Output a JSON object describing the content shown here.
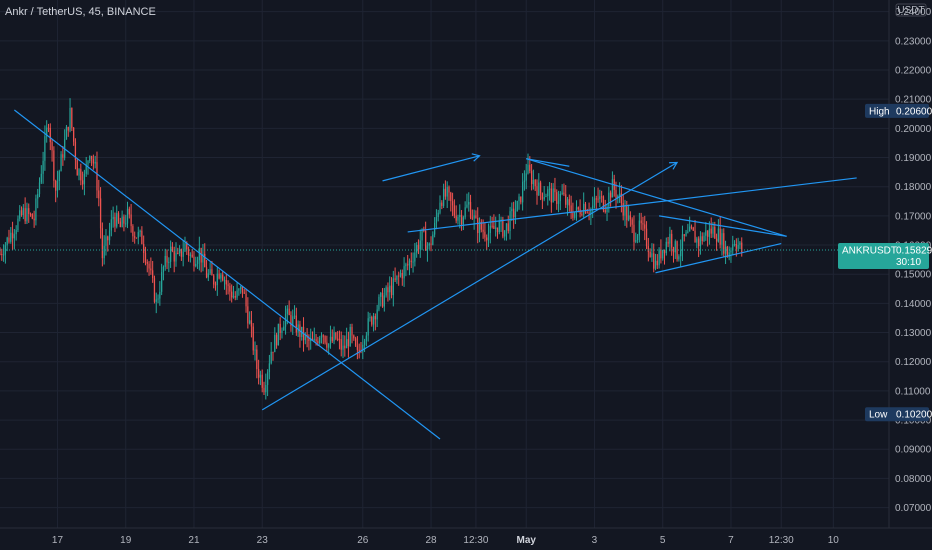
{
  "header": {
    "title": "Ankr / TetherUS, 45, BINANCE",
    "currency": "USDT"
  },
  "colors": {
    "background": "#131722",
    "grid": "#1f2433",
    "up": "#26a69a",
    "down": "#ef5350",
    "trendline": "#2196f3",
    "price_badge": "#26a69a",
    "hl_badge": "#1e3a5f"
  },
  "chart_data": {
    "type": "candlestick",
    "y_axis": {
      "ticks": [
        "0.07000",
        "0.08000",
        "0.09000",
        "0.10000",
        "0.11000",
        "0.12000",
        "0.13000",
        "0.14000",
        "0.15000",
        "0.16000",
        "0.17000",
        "0.18000",
        "0.19000",
        "0.20000",
        "0.21000",
        "0.22000",
        "0.23000",
        "0.24000"
      ],
      "tick_values": [
        0.07,
        0.08,
        0.09,
        0.1,
        0.11,
        0.12,
        0.13,
        0.14,
        0.15,
        0.16,
        0.17,
        0.18,
        0.19,
        0.2,
        0.21,
        0.22,
        0.23,
        0.24
      ],
      "range": [
        0.063,
        0.244
      ]
    },
    "x_axis": {
      "ticks": [
        {
          "label": "17",
          "bold": false,
          "t": 15
        },
        {
          "label": "19",
          "bold": false,
          "t": 53
        },
        {
          "label": "21",
          "bold": false,
          "t": 91
        },
        {
          "label": "23",
          "bold": false,
          "t": 129
        },
        {
          "label": "26",
          "bold": false,
          "t": 185
        },
        {
          "label": "28",
          "bold": false,
          "t": 223
        },
        {
          "label": "12:30",
          "bold": false,
          "t": 248
        },
        {
          "label": "May",
          "bold": true,
          "t": 276
        },
        {
          "label": "3",
          "bold": false,
          "t": 314
        },
        {
          "label": "5",
          "bold": false,
          "t": 352
        },
        {
          "label": "7",
          "bold": false,
          "t": 390
        },
        {
          "label": "12:30",
          "bold": false,
          "t": 418
        },
        {
          "label": "10",
          "bold": false,
          "t": 447
        }
      ],
      "t_range": [
        -17,
        478
      ]
    },
    "high": {
      "label": "High",
      "value": "0.20600",
      "y": 0.206
    },
    "low": {
      "label": "Low",
      "value": "0.10200",
      "y": 0.102
    },
    "last": {
      "symbol": "ANKRUSDT",
      "value": "0.15829",
      "countdown": "30:10",
      "y": 0.1583
    },
    "price_path": [
      [
        -17,
        0.157
      ],
      [
        -10,
        0.165
      ],
      [
        -4,
        0.171
      ],
      [
        2,
        0.169
      ],
      [
        6,
        0.186
      ],
      [
        10,
        0.203
      ],
      [
        14,
        0.179
      ],
      [
        18,
        0.192
      ],
      [
        22,
        0.205
      ],
      [
        26,
        0.186
      ],
      [
        30,
        0.183
      ],
      [
        33,
        0.193
      ],
      [
        36,
        0.186
      ],
      [
        38,
        0.176
      ],
      [
        40,
        0.156
      ],
      [
        43,
        0.162
      ],
      [
        46,
        0.17
      ],
      [
        50,
        0.166
      ],
      [
        54,
        0.17
      ],
      [
        58,
        0.164
      ],
      [
        62,
        0.162
      ],
      [
        66,
        0.152
      ],
      [
        70,
        0.14
      ],
      [
        74,
        0.152
      ],
      [
        78,
        0.158
      ],
      [
        82,
        0.155
      ],
      [
        86,
        0.16
      ],
      [
        90,
        0.155
      ],
      [
        94,
        0.158
      ],
      [
        98,
        0.15
      ],
      [
        102,
        0.148
      ],
      [
        106,
        0.152
      ],
      [
        110,
        0.145
      ],
      [
        114,
        0.142
      ],
      [
        118,
        0.145
      ],
      [
        122,
        0.133
      ],
      [
        126,
        0.118
      ],
      [
        130,
        0.112
      ],
      [
        134,
        0.124
      ],
      [
        138,
        0.13
      ],
      [
        142,
        0.136
      ],
      [
        146,
        0.134
      ],
      [
        150,
        0.13
      ],
      [
        154,
        0.127
      ],
      [
        158,
        0.126
      ],
      [
        162,
        0.131
      ],
      [
        166,
        0.126
      ],
      [
        170,
        0.128
      ],
      [
        174,
        0.124
      ],
      [
        178,
        0.129
      ],
      [
        182,
        0.122
      ],
      [
        186,
        0.13
      ],
      [
        190,
        0.135
      ],
      [
        194,
        0.14
      ],
      [
        198,
        0.143
      ],
      [
        202,
        0.146
      ],
      [
        206,
        0.15
      ],
      [
        210,
        0.153
      ],
      [
        214,
        0.158
      ],
      [
        218,
        0.163
      ],
      [
        222,
        0.159
      ],
      [
        225,
        0.166
      ],
      [
        228,
        0.176
      ],
      [
        232,
        0.177
      ],
      [
        236,
        0.171
      ],
      [
        240,
        0.17
      ],
      [
        244,
        0.174
      ],
      [
        248,
        0.167
      ],
      [
        252,
        0.165
      ],
      [
        256,
        0.164
      ],
      [
        260,
        0.167
      ],
      [
        264,
        0.165
      ],
      [
        268,
        0.17
      ],
      [
        272,
        0.174
      ],
      [
        276,
        0.186
      ],
      [
        280,
        0.182
      ],
      [
        284,
        0.178
      ],
      [
        288,
        0.178
      ],
      [
        292,
        0.176
      ],
      [
        296,
        0.177
      ],
      [
        300,
        0.172
      ],
      [
        304,
        0.171
      ],
      [
        308,
        0.174
      ],
      [
        312,
        0.172
      ],
      [
        316,
        0.176
      ],
      [
        320,
        0.174
      ],
      [
        324,
        0.18
      ],
      [
        328,
        0.176
      ],
      [
        332,
        0.17
      ],
      [
        336,
        0.164
      ],
      [
        340,
        0.166
      ],
      [
        344,
        0.16
      ],
      [
        348,
        0.153
      ],
      [
        352,
        0.159
      ],
      [
        356,
        0.163
      ],
      [
        360,
        0.157
      ],
      [
        364,
        0.162
      ],
      [
        368,
        0.164
      ],
      [
        372,
        0.161
      ],
      [
        376,
        0.164
      ],
      [
        380,
        0.165
      ],
      [
        384,
        0.163
      ],
      [
        388,
        0.157
      ],
      [
        392,
        0.162
      ],
      [
        396,
        0.158
      ]
    ],
    "trendlines": [
      {
        "from": [
          -9,
          0.2063
        ],
        "to": [
          228,
          0.0935
        ]
      },
      {
        "from": [
          129,
          0.1035
        ],
        "to": [
          360,
          0.1883
        ],
        "arrow": true
      },
      {
        "from": [
          210,
          0.1645
        ],
        "to": [
          460,
          0.183
        ]
      },
      {
        "from": [
          196,
          0.182
        ],
        "to": [
          250,
          0.1906
        ],
        "arrow": true
      },
      {
        "from": [
          276,
          0.1896
        ],
        "to": [
          421,
          0.163
        ]
      },
      {
        "from": [
          276,
          0.1896
        ],
        "to": [
          300,
          0.187
        ]
      },
      {
        "from": [
          348,
          0.1505
        ],
        "to": [
          418,
          0.1605
        ]
      },
      {
        "from": [
          350,
          0.17
        ],
        "to": [
          421,
          0.163
        ]
      }
    ]
  }
}
